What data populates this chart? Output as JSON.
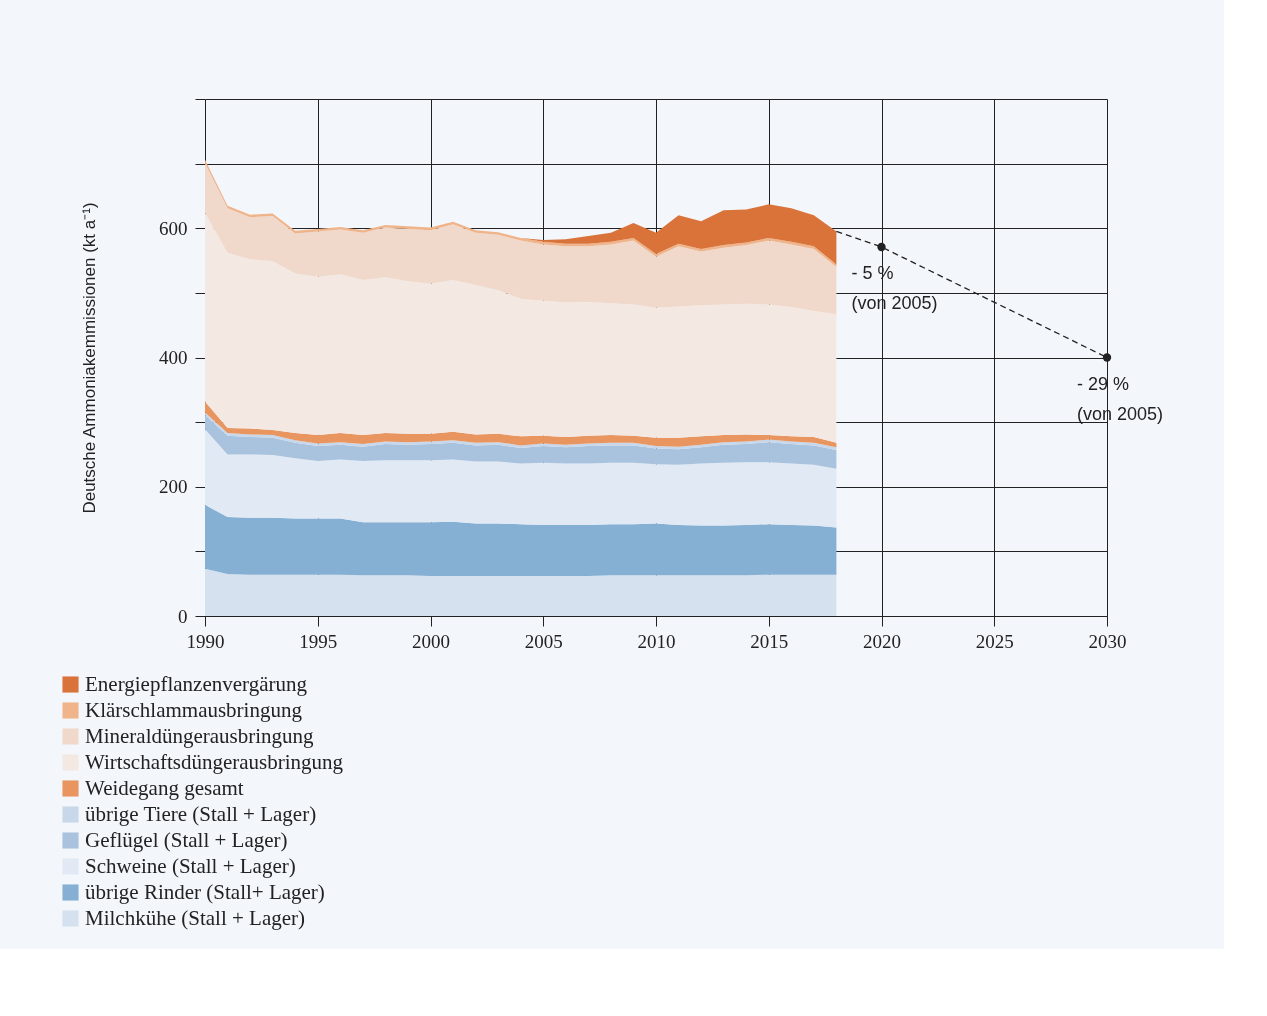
{
  "chart_data": {
    "type": "area",
    "stacked": true,
    "ylabel": "Deutsche Ammoniakemmissionen (kt a⁻¹)",
    "x": [
      1990,
      1991,
      1992,
      1993,
      1994,
      1995,
      1996,
      1997,
      1998,
      1999,
      2000,
      2001,
      2002,
      2003,
      2004,
      2005,
      2006,
      2007,
      2008,
      2009,
      2010,
      2011,
      2012,
      2013,
      2014,
      2015,
      2016,
      2017,
      2018
    ],
    "xlim": [
      1990,
      2030
    ],
    "xticks": [
      1990,
      1995,
      2000,
      2005,
      2010,
      2015,
      2020,
      2025,
      2030
    ],
    "ylim": [
      0,
      800
    ],
    "yticks": [
      0,
      {
        "value": 100,
        "label": null
      },
      200,
      {
        "value": 300,
        "label": null
      },
      400,
      {
        "value": 500,
        "label": null
      },
      600,
      {
        "value": 700,
        "label": null
      },
      {
        "value": 800,
        "label": null
      }
    ],
    "grid": true,
    "legend": "bottom left",
    "series": [
      {
        "name": "Milchkühe (Stall + Lager)",
        "color": "#d5e1ee",
        "values": [
          73,
          65,
          64,
          64,
          64,
          64,
          64,
          63,
          63,
          63,
          62,
          62,
          62,
          62,
          62,
          62,
          62,
          62,
          63,
          63,
          63,
          63,
          63,
          63,
          63,
          64,
          64,
          64,
          64
        ]
      },
      {
        "name": "übrige Rinder (Stall+ Lager)",
        "color": "#85afd3",
        "values": [
          99,
          88,
          88,
          88,
          87,
          87,
          87,
          82,
          82,
          82,
          83,
          84,
          81,
          81,
          80,
          79,
          79,
          79,
          79,
          79,
          80,
          78,
          77,
          77,
          78,
          78,
          77,
          76,
          73
        ]
      },
      {
        "name": "Schweine (Stall + Lager)",
        "color": "#e1e9f4",
        "values": [
          117,
          97,
          98,
          97,
          93,
          89,
          91,
          95,
          96,
          96,
          96,
          96,
          96,
          96,
          94,
          96,
          95,
          95,
          95,
          95,
          92,
          93,
          96,
          97,
          97,
          96,
          95,
          94,
          91
        ]
      },
      {
        "name": "Geflügel (Stall + Lager)",
        "color": "#a9c3de",
        "values": [
          22,
          29,
          27,
          27,
          24,
          23,
          23,
          22,
          25,
          24,
          25,
          26,
          25,
          26,
          24,
          26,
          25,
          27,
          27,
          27,
          24,
          24,
          25,
          28,
          28,
          31,
          30,
          30,
          29
        ]
      },
      {
        "name": "übrige Tiere (Stall + Lager)",
        "color": "#c8d8ea",
        "values": [
          4,
          4,
          4,
          4,
          4,
          4,
          4,
          4,
          4,
          4,
          4,
          4,
          4,
          4,
          4,
          4,
          4,
          4,
          4,
          4,
          4,
          4,
          4,
          4,
          4,
          4,
          4,
          4,
          4
        ]
      },
      {
        "name": "Weidegang gesamt",
        "color": "#e8955f",
        "values": [
          17,
          8,
          9,
          8,
          11,
          13,
          14,
          14,
          13,
          13,
          12,
          13,
          13,
          13,
          14,
          12,
          12,
          12,
          12,
          11,
          13,
          14,
          13,
          11,
          11,
          7,
          8,
          9,
          7
        ]
      },
      {
        "name": "Wirtschaftsdüngerausbringung",
        "color": "#f4e8e3",
        "values": [
          292,
          271,
          262,
          261,
          247,
          245,
          246,
          240,
          241,
          236,
          232,
          235,
          231,
          222,
          213,
          209,
          208,
          207,
          204,
          203,
          201,
          203,
          203,
          202,
          202,
          202,
          200,
          195,
          199
        ]
      },
      {
        "name": "Mineraldüngerausbringung",
        "color": "#f0d9ca",
        "values": [
          77,
          69,
          65,
          70,
          62,
          70,
          69,
          73,
          77,
          81,
          83,
          86,
          81,
          86,
          90,
          87,
          87,
          86,
          91,
          99,
          79,
          93,
          83,
          88,
          91,
          99,
          97,
          96,
          73
        ]
      },
      {
        "name": "Klärschlammausbringung",
        "color": "#f0b48a",
        "values": [
          5,
          4,
          4,
          4,
          4,
          4,
          4,
          4,
          4,
          4,
          4,
          4,
          4,
          4,
          4,
          4,
          4,
          4,
          4,
          4,
          4,
          4,
          4,
          4,
          4,
          4,
          4,
          4,
          4
        ]
      },
      {
        "name": "Energiepflanzenvergärung",
        "color": "#d9733a",
        "values": [
          0,
          0,
          0,
          0,
          0,
          0,
          0,
          0,
          0,
          0,
          0,
          0,
          0,
          0,
          0,
          3,
          7,
          12,
          14,
          23,
          33,
          44,
          43,
          54,
          51,
          52,
          52,
          48,
          51
        ]
      },
      {
        "type": "line",
        "color": "#222222",
        "line_style": "dashed",
        "x": [
          2018,
          2020,
          2030
        ],
        "values": [
          595,
          571,
          400
        ]
      },
      {
        "type": "scatter",
        "color": "#222222",
        "marker": "circle",
        "x": [
          2020,
          2030
        ],
        "values": [
          571,
          400
        ]
      }
    ],
    "annotations": [
      {
        "text": "- 5 %\n(von 2005)",
        "x": 2020,
        "y": 571
      },
      {
        "text": "- 29 %\n(von 2005)",
        "x": 2030,
        "y": 400
      }
    ]
  }
}
